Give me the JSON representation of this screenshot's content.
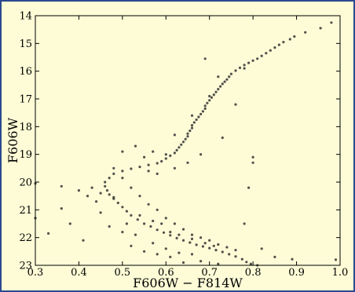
{
  "chart_data": {
    "type": "scatter",
    "title": "",
    "xlabel": "F606W − F814W",
    "ylabel": "F606W",
    "xlim": [
      0.3,
      1.0
    ],
    "ylim": [
      23,
      14
    ],
    "y_inverted": true,
    "grid": false,
    "point_color": "#333333",
    "x_ticks": [
      "0.3",
      "0.4",
      "0.5",
      "0.6",
      "0.7",
      "0.8",
      "0.9",
      "1.0"
    ],
    "y_ticks": [
      "14",
      "15",
      "16",
      "17",
      "18",
      "19",
      "20",
      "21",
      "22",
      "23"
    ],
    "series": [
      {
        "points": [
          [
            0.98,
            14.25
          ],
          [
            0.955,
            14.45
          ],
          [
            0.92,
            14.6
          ],
          [
            0.895,
            14.75
          ],
          [
            0.885,
            14.85
          ],
          [
            0.87,
            14.95
          ],
          [
            0.86,
            15.05
          ],
          [
            0.85,
            15.15
          ],
          [
            0.84,
            15.25
          ],
          [
            0.83,
            15.35
          ],
          [
            0.82,
            15.45
          ],
          [
            0.81,
            15.55
          ],
          [
            0.8,
            15.62
          ],
          [
            0.79,
            15.7
          ],
          [
            0.78,
            15.78
          ],
          [
            0.77,
            15.88
          ],
          [
            0.76,
            15.98
          ],
          [
            0.75,
            16.1
          ],
          [
            0.745,
            16.2
          ],
          [
            0.74,
            16.3
          ],
          [
            0.735,
            16.38
          ],
          [
            0.73,
            16.46
          ],
          [
            0.725,
            16.55
          ],
          [
            0.72,
            16.65
          ],
          [
            0.715,
            16.75
          ],
          [
            0.71,
            16.85
          ],
          [
            0.705,
            16.95
          ],
          [
            0.7,
            17.05
          ],
          [
            0.695,
            17.15
          ],
          [
            0.69,
            17.25
          ],
          [
            0.69,
            17.35
          ],
          [
            0.685,
            17.45
          ],
          [
            0.68,
            17.55
          ],
          [
            0.675,
            17.65
          ],
          [
            0.67,
            17.75
          ],
          [
            0.665,
            17.85
          ],
          [
            0.66,
            17.95
          ],
          [
            0.66,
            18.05
          ],
          [
            0.655,
            18.15
          ],
          [
            0.65,
            18.25
          ],
          [
            0.65,
            18.35
          ],
          [
            0.645,
            18.45
          ],
          [
            0.64,
            18.55
          ],
          [
            0.635,
            18.65
          ],
          [
            0.63,
            18.75
          ],
          [
            0.625,
            18.85
          ],
          [
            0.62,
            18.95
          ],
          [
            0.61,
            19.05
          ],
          [
            0.6,
            19.15
          ],
          [
            0.59,
            19.25
          ],
          [
            0.58,
            19.32
          ],
          [
            0.56,
            19.38
          ],
          [
            0.54,
            19.45
          ],
          [
            0.52,
            19.52
          ],
          [
            0.5,
            19.6
          ],
          [
            0.48,
            19.7
          ],
          [
            0.47,
            19.85
          ],
          [
            0.46,
            20.0
          ],
          [
            0.46,
            20.15
          ],
          [
            0.465,
            20.3
          ],
          [
            0.47,
            20.45
          ],
          [
            0.48,
            20.6
          ],
          [
            0.49,
            20.75
          ],
          [
            0.5,
            20.9
          ],
          [
            0.51,
            21.05
          ],
          [
            0.52,
            21.2
          ],
          [
            0.535,
            21.35
          ],
          [
            0.55,
            21.5
          ],
          [
            0.565,
            21.6
          ],
          [
            0.58,
            21.72
          ],
          [
            0.595,
            21.82
          ],
          [
            0.61,
            21.92
          ],
          [
            0.625,
            22.02
          ],
          [
            0.64,
            22.1
          ],
          [
            0.655,
            22.18
          ],
          [
            0.67,
            22.26
          ],
          [
            0.685,
            22.32
          ],
          [
            0.7,
            22.38
          ],
          [
            0.715,
            22.45
          ],
          [
            0.73,
            22.52
          ],
          [
            0.745,
            22.6
          ],
          [
            0.76,
            22.68
          ],
          [
            0.775,
            22.78
          ],
          [
            0.785,
            22.88
          ],
          [
            0.795,
            22.95
          ],
          [
            0.81,
            23.0
          ],
          [
            0.48,
            19.5
          ],
          [
            0.5,
            19.85
          ],
          [
            0.52,
            20.2
          ],
          [
            0.54,
            20.5
          ],
          [
            0.56,
            20.8
          ],
          [
            0.58,
            21.0
          ],
          [
            0.6,
            21.3
          ],
          [
            0.62,
            21.5
          ],
          [
            0.64,
            21.7
          ],
          [
            0.66,
            21.9
          ],
          [
            0.68,
            22.0
          ],
          [
            0.7,
            22.1
          ],
          [
            0.72,
            22.25
          ],
          [
            0.74,
            22.35
          ],
          [
            0.76,
            22.45
          ],
          [
            0.45,
            20.4
          ],
          [
            0.44,
            20.7
          ],
          [
            0.43,
            20.2
          ],
          [
            0.42,
            20.5
          ],
          [
            0.4,
            20.3
          ],
          [
            0.45,
            21.1
          ],
          [
            0.47,
            21.6
          ],
          [
            0.5,
            21.8
          ],
          [
            0.52,
            22.3
          ],
          [
            0.55,
            22.5
          ],
          [
            0.58,
            22.6
          ],
          [
            0.61,
            22.7
          ],
          [
            0.64,
            22.9
          ],
          [
            0.68,
            22.85
          ],
          [
            0.72,
            22.95
          ],
          [
            0.55,
            19.1
          ],
          [
            0.57,
            18.9
          ],
          [
            0.6,
            19.0
          ],
          [
            0.56,
            19.6
          ],
          [
            0.58,
            19.7
          ],
          [
            0.62,
            19.5
          ],
          [
            0.65,
            19.3
          ],
          [
            0.68,
            19.0
          ],
          [
            0.5,
            18.9
          ],
          [
            0.53,
            18.7
          ],
          [
            0.62,
            18.3
          ],
          [
            0.66,
            17.6
          ],
          [
            0.7,
            16.9
          ],
          [
            0.72,
            16.2
          ],
          [
            0.78,
            15.9
          ],
          [
            0.8,
            19.1
          ],
          [
            0.8,
            19.3
          ],
          [
            0.69,
            15.55
          ],
          [
            0.76,
            17.2
          ],
          [
            0.73,
            18.4
          ],
          [
            0.79,
            20.2
          ],
          [
            0.78,
            21.5
          ],
          [
            0.82,
            22.4
          ],
          [
            0.85,
            22.7
          ],
          [
            0.89,
            22.78
          ],
          [
            0.99,
            22.8
          ],
          [
            0.41,
            22.1
          ],
          [
            0.33,
            21.85
          ],
          [
            0.36,
            20.95
          ],
          [
            0.36,
            20.15
          ],
          [
            0.3,
            20.05
          ],
          [
            0.3,
            21.3
          ],
          [
            0.38,
            21.5
          ],
          [
            0.48,
            20.55
          ],
          [
            0.51,
            21.5
          ],
          [
            0.53,
            21.9
          ],
          [
            0.57,
            22.2
          ],
          [
            0.6,
            22.4
          ],
          [
            0.63,
            22.55
          ],
          [
            0.66,
            22.6
          ],
          [
            0.54,
            21.2
          ],
          [
            0.57,
            21.4
          ],
          [
            0.59,
            21.5
          ],
          [
            0.61,
            21.8
          ],
          [
            0.63,
            21.9
          ],
          [
            0.66,
            22.05
          ],
          [
            0.69,
            22.2
          ],
          [
            0.71,
            22.3
          ]
        ]
      }
    ]
  }
}
